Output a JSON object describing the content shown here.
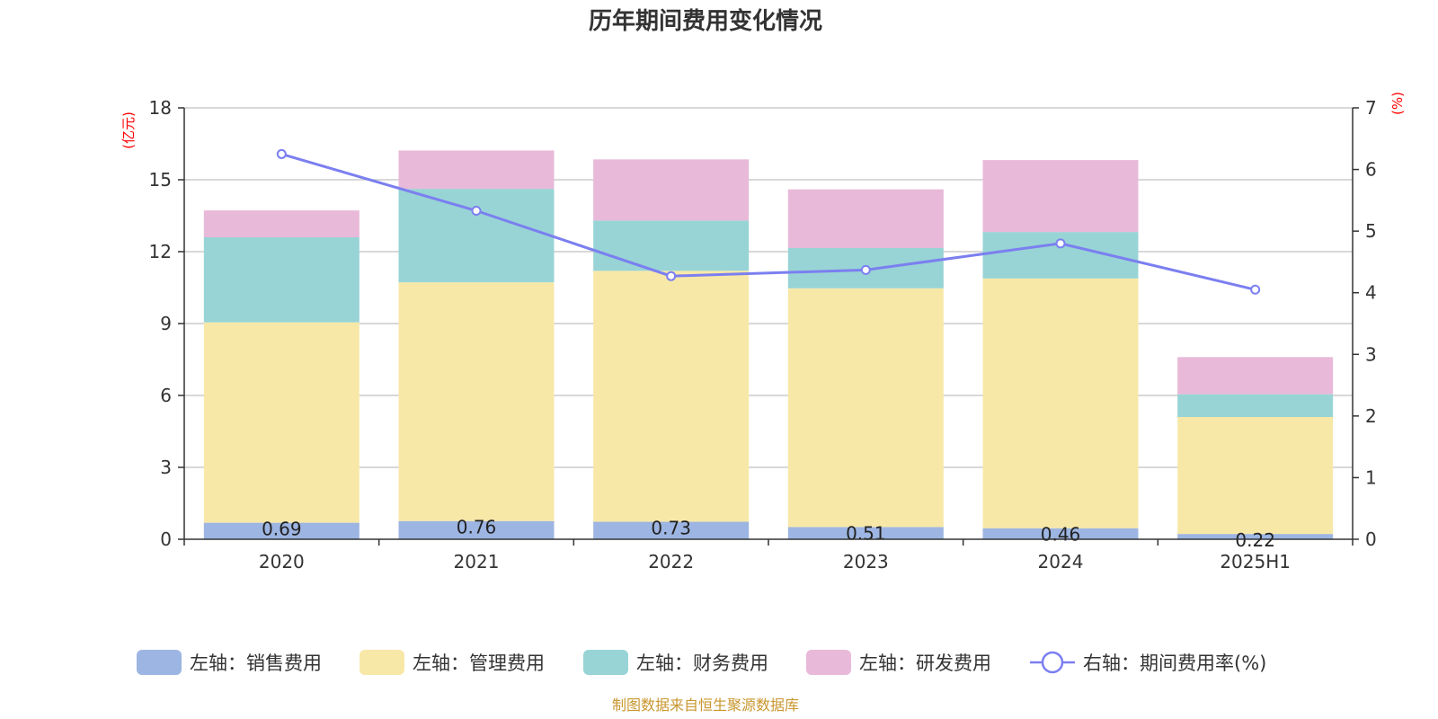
{
  "chart_data": {
    "type": "bar",
    "title": "历年期间费用变化情况",
    "categories": [
      "2020",
      "2021",
      "2022",
      "2023",
      "2024",
      "2025H1"
    ],
    "y_left": {
      "unit": "(亿元)",
      "min": 0,
      "max": 18,
      "ticks": [
        "0",
        "3",
        "6",
        "9",
        "12",
        "15",
        "18"
      ]
    },
    "y_right": {
      "unit": "(%)",
      "min": 0,
      "max": 7,
      "ticks": [
        "0",
        "1",
        "2",
        "3",
        "4",
        "5",
        "6",
        "7"
      ]
    },
    "stacked": true,
    "grid": true,
    "legend_position": "bottom",
    "series": [
      {
        "name": "左轴：销售费用",
        "axis": "left",
        "type": "bar",
        "color": "#9db5e2",
        "values": [
          0.69,
          0.76,
          0.73,
          0.51,
          0.46,
          0.22
        ],
        "labels": [
          "0.69",
          "0.76",
          "0.73",
          "0.51",
          "0.46",
          "0.22"
        ]
      },
      {
        "name": "左轴：管理费用",
        "axis": "left",
        "type": "bar",
        "color": "#f8e8a8",
        "values": [
          8.36,
          9.96,
          10.47,
          9.96,
          10.42,
          4.88
        ]
      },
      {
        "name": "左轴：财务费用",
        "axis": "left",
        "type": "bar",
        "color": "#98d4d5",
        "values": [
          3.55,
          3.9,
          2.1,
          1.68,
          1.94,
          0.95
        ]
      },
      {
        "name": "左轴：研发费用",
        "axis": "left",
        "type": "bar",
        "color": "#e8b9d9",
        "values": [
          1.12,
          1.6,
          2.55,
          2.45,
          3.0,
          1.55
        ]
      },
      {
        "name": "右轴：期间费用率(%)",
        "axis": "right",
        "type": "line",
        "color": "#7b7ff0",
        "values": [
          6.25,
          5.33,
          4.27,
          4.37,
          4.8,
          4.05
        ]
      }
    ]
  },
  "source": "制图数据来自恒生聚源数据库"
}
